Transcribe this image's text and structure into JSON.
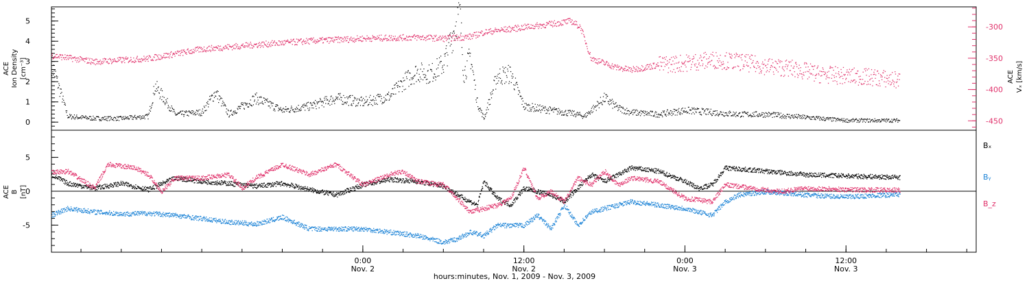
{
  "chart_data": [
    {
      "type": "scatter",
      "panel": "top",
      "ylabel": [
        "ACE",
        "Ion Density",
        "[cm⁻³]"
      ],
      "ylabel_right": [
        "ACE",
        "Vₓ [km/s]"
      ],
      "ylim": [
        -0.4,
        5.7
      ],
      "ylim_right": [
        -465,
        -268
      ],
      "y_ticks": [
        0,
        1,
        2,
        3,
        4,
        5
      ],
      "y_ticks_right": [
        -300,
        -350,
        -400,
        -450
      ],
      "colors": {
        "density": "#000000",
        "velocity": "#e0306a"
      },
      "series": [
        {
          "axis": "left",
          "values": [
            [
              -23.2,
              2.9
            ],
            [
              -22,
              0.3
            ],
            [
              -20,
              0.2
            ],
            [
              -18,
              0.2
            ],
            [
              -16,
              0.3
            ],
            [
              -15.5,
              1.8
            ],
            [
              -14,
              0.4
            ],
            [
              -12,
              0.5
            ],
            [
              -11,
              1.5
            ],
            [
              -10,
              0.4
            ],
            [
              -8,
              1.2
            ],
            [
              -6,
              0.6
            ],
            [
              -4,
              0.8
            ],
            [
              -2,
              1.2
            ],
            [
              0,
              1.0
            ],
            [
              2,
              1.3
            ],
            [
              3,
              2.0
            ],
            [
              4,
              2.5
            ],
            [
              5,
              2.4
            ],
            [
              6,
              2.9
            ],
            [
              7.2,
              5.5
            ],
            [
              7.5,
              2.4
            ],
            [
              8,
              3.3
            ],
            [
              8.5,
              1.0
            ],
            [
              9,
              0.2
            ],
            [
              10,
              2.3
            ],
            [
              11,
              2.4
            ],
            [
              12,
              0.8
            ],
            [
              13,
              0.7
            ],
            [
              14,
              0.6
            ],
            [
              15,
              0.5
            ],
            [
              16,
              0.4
            ],
            [
              16.5,
              0.3
            ],
            [
              17,
              0.6
            ],
            [
              18,
              1.2
            ],
            [
              19,
              0.7
            ],
            [
              20,
              0.5
            ],
            [
              22,
              0.4
            ],
            [
              24,
              0.6
            ],
            [
              26,
              0.5
            ],
            [
              28,
              0.4
            ],
            [
              30,
              0.4
            ],
            [
              32,
              0.3
            ],
            [
              34,
              0.2
            ],
            [
              36,
              0.1
            ],
            [
              38,
              0.1
            ],
            [
              40,
              0.1
            ]
          ]
        },
        {
          "axis": "right",
          "values": [
            [
              -23.2,
              -345
            ],
            [
              -20,
              -355
            ],
            [
              -16,
              -350
            ],
            [
              -12,
              -335
            ],
            [
              -8,
              -328
            ],
            [
              -4,
              -322
            ],
            [
              0,
              -318
            ],
            [
              4,
              -316
            ],
            [
              6,
              -318
            ],
            [
              8,
              -315
            ],
            [
              9,
              -308
            ],
            [
              12,
              -300
            ],
            [
              14,
              -295
            ],
            [
              15.5,
              -290
            ],
            [
              16.2,
              -300
            ],
            [
              17,
              -350
            ],
            [
              19,
              -365
            ],
            [
              20,
              -368
            ],
            [
              22,
              -360
            ],
            [
              24,
              -357
            ],
            [
              26,
              -352
            ],
            [
              28,
              -355
            ],
            [
              30,
              -362
            ],
            [
              32,
              -366
            ],
            [
              34,
              -375
            ],
            [
              36,
              -378
            ],
            [
              38,
              -380
            ],
            [
              40,
              -385
            ]
          ]
        }
      ]
    },
    {
      "type": "line",
      "panel": "bottom",
      "ylabel": [
        "ACE",
        "B",
        "[nT]"
      ],
      "ylim": [
        -9,
        9
      ],
      "y_ticks": [
        -5,
        0,
        5
      ],
      "zero_line": true,
      "series": [
        {
          "name": "Bₓ",
          "color": "#000000",
          "values": [
            [
              -23.2,
              2.5
            ],
            [
              -22,
              1.2
            ],
            [
              -20,
              0.5
            ],
            [
              -18,
              1.2
            ],
            [
              -16,
              0.3
            ],
            [
              -14,
              2.0
            ],
            [
              -12,
              1.5
            ],
            [
              -10,
              1.2
            ],
            [
              -8,
              0.8
            ],
            [
              -6,
              1.2
            ],
            [
              -4,
              0.3
            ],
            [
              -2,
              -0.5
            ],
            [
              0,
              1.0
            ],
            [
              2,
              1.8
            ],
            [
              4,
              1.5
            ],
            [
              6,
              0.8
            ],
            [
              7.5,
              -1.0
            ],
            [
              8.5,
              -2.0
            ],
            [
              9,
              1.5
            ],
            [
              10,
              -1.0
            ],
            [
              11,
              -2.0
            ],
            [
              12,
              0.5
            ],
            [
              14,
              -0.5
            ],
            [
              15,
              -1.5
            ],
            [
              16,
              0.5
            ],
            [
              17,
              2.5
            ],
            [
              18,
              1.5
            ],
            [
              19,
              2.5
            ],
            [
              20,
              3.5
            ],
            [
              22,
              3.0
            ],
            [
              24,
              1.5
            ],
            [
              25,
              0.5
            ],
            [
              26,
              1.0
            ],
            [
              27,
              3.5
            ],
            [
              30,
              3.0
            ],
            [
              33,
              2.5
            ],
            [
              36,
              2.3
            ],
            [
              40,
              2.1
            ]
          ]
        },
        {
          "name": "Bᵧ",
          "color": "#1a82d6",
          "values": [
            [
              -23.2,
              -3.5
            ],
            [
              -22,
              -2.5
            ],
            [
              -20,
              -3.0
            ],
            [
              -18,
              -3.3
            ],
            [
              -16,
              -3.2
            ],
            [
              -14,
              -3.5
            ],
            [
              -12,
              -4.0
            ],
            [
              -10,
              -4.5
            ],
            [
              -8,
              -4.8
            ],
            [
              -6,
              -3.8
            ],
            [
              -4,
              -5.5
            ],
            [
              -2,
              -5.5
            ],
            [
              0,
              -5.5
            ],
            [
              2,
              -6.0
            ],
            [
              4,
              -6.5
            ],
            [
              6,
              -7.5
            ],
            [
              7,
              -7.0
            ],
            [
              8,
              -6.0
            ],
            [
              9,
              -6.5
            ],
            [
              10,
              -5.0
            ],
            [
              12,
              -5.0
            ],
            [
              13,
              -3.5
            ],
            [
              14,
              -5.5
            ],
            [
              15,
              -2.0
            ],
            [
              16,
              -5.0
            ],
            [
              17,
              -3.0
            ],
            [
              18,
              -2.5
            ],
            [
              20,
              -1.5
            ],
            [
              22,
              -2.0
            ],
            [
              24,
              -2.5
            ],
            [
              26,
              -3.5
            ],
            [
              27,
              -1.5
            ],
            [
              28,
              -0.5
            ],
            [
              30,
              0.0
            ],
            [
              33,
              -0.5
            ],
            [
              36,
              -0.8
            ],
            [
              40,
              -0.4
            ]
          ]
        },
        {
          "name": "B_z",
          "color": "#e0306a",
          "values": [
            [
              -23.2,
              2.8
            ],
            [
              -22,
              3.0
            ],
            [
              -20,
              0.5
            ],
            [
              -19,
              4.0
            ],
            [
              -17,
              3.5
            ],
            [
              -16,
              2.5
            ],
            [
              -15,
              0.0
            ],
            [
              -14,
              2.0
            ],
            [
              -12,
              2.0
            ],
            [
              -10,
              2.5
            ],
            [
              -9,
              0.5
            ],
            [
              -8,
              2.0
            ],
            [
              -6,
              4.0
            ],
            [
              -4,
              2.5
            ],
            [
              -2,
              4.0
            ],
            [
              0,
              1.0
            ],
            [
              2,
              2.5
            ],
            [
              3,
              3.0
            ],
            [
              4,
              1.5
            ],
            [
              6,
              1.0
            ],
            [
              7,
              -1.0
            ],
            [
              8,
              -3.0
            ],
            [
              9,
              -2.5
            ],
            [
              10,
              -2.0
            ],
            [
              11,
              -1.0
            ],
            [
              12,
              3.5
            ],
            [
              13,
              -1.0
            ],
            [
              14,
              0.0
            ],
            [
              15,
              -1.5
            ],
            [
              16,
              2.0
            ],
            [
              17,
              1.0
            ],
            [
              18,
              3.0
            ],
            [
              19,
              1.0
            ],
            [
              20,
              2.0
            ],
            [
              22,
              1.5
            ],
            [
              24,
              -1.0
            ],
            [
              26,
              -1.5
            ],
            [
              27,
              1.0
            ],
            [
              29,
              0.5
            ],
            [
              31,
              0.0
            ],
            [
              33,
              0.5
            ],
            [
              36,
              0.3
            ],
            [
              40,
              0.2
            ]
          ]
        }
      ]
    }
  ],
  "x_axis": {
    "ticks": [
      {
        "time": "0:00",
        "date": "Nov. 2"
      },
      {
        "time": "12:00",
        "date": "Nov. 2"
      },
      {
        "time": "0:00",
        "date": "Nov. 3"
      },
      {
        "time": "12:00",
        "date": "Nov. 3"
      }
    ],
    "tick_hours": [
      0,
      12,
      24,
      36
    ],
    "xlim_hours": [
      -23.2,
      45.7
    ],
    "label": "hours:minutes, Nov.  1, 2009 - Nov.  3, 2009"
  },
  "legend": {
    "bx": "Bₓ",
    "by": "Bᵧ",
    "bz": "B_z"
  }
}
